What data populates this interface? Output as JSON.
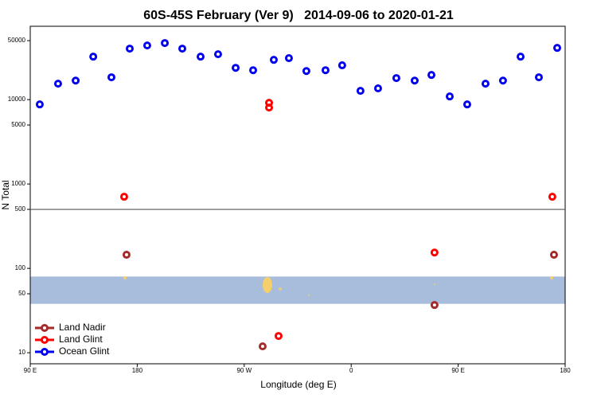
{
  "chart_data": {
    "type": "scatter",
    "title": "60S-45S February (Ver 9)   2014-09-06 to 2020-01-21",
    "x_label": "Longitude (deg E)",
    "y_label": "N Total",
    "log_y": true,
    "xlim": [
      90,
      540
    ],
    "xticks": [
      {
        "value": 90,
        "label": "90 E"
      },
      180,
      {
        "value": 270,
        "label": "90 W"
      },
      {
        "value": 360,
        "label": "0"
      },
      {
        "value": 450,
        "label": "90 E"
      },
      {
        "value": 540,
        "label": "180"
      }
    ],
    "ylim": [
      7.4,
      74000
    ],
    "yticks": [
      10,
      50,
      100,
      500,
      1000,
      5000,
      10000,
      50000
    ],
    "hline": 500,
    "band": [
      38,
      80
    ],
    "band_color": "#a8bcdc",
    "legend": "bottomleft",
    "series": [
      {
        "name": "Land Nadir",
        "color": "#a52a2a",
        "x": [
          171,
          285.5,
          430.1,
          530.6
        ],
        "values": [
          145,
          11.9,
          36.8,
          145
        ]
      },
      {
        "name": "Land Glint",
        "color": "#ff0000",
        "x": [
          169,
          290.9,
          290.9,
          298.9,
          430.1,
          529.2
        ],
        "values": [
          706,
          9160,
          8050,
          15.8,
          154,
          706
        ]
      },
      {
        "name": "Ocean Glint",
        "color": "#0000ee",
        "x": [
          98,
          113.4,
          128.2,
          143,
          158.3,
          173.7,
          188.4,
          203.2,
          217.9,
          233.3,
          248,
          262.8,
          277.5,
          294.9,
          307.6,
          322.3,
          338.4,
          352.4,
          367.8,
          382.6,
          398,
          413.4,
          427.5,
          442.9,
          457.6,
          473,
          487.7,
          502.5,
          517.9,
          533.3
        ],
        "values": [
          8770,
          15450,
          16800,
          32300,
          18400,
          40200,
          43800,
          46800,
          40200,
          32300,
          34500,
          23800,
          22300,
          29600,
          31000,
          21800,
          22300,
          25500,
          12700,
          13600,
          18000,
          16800,
          19600,
          10900,
          8770,
          15450,
          16800,
          32300,
          18400,
          41000
        ]
      }
    ]
  }
}
